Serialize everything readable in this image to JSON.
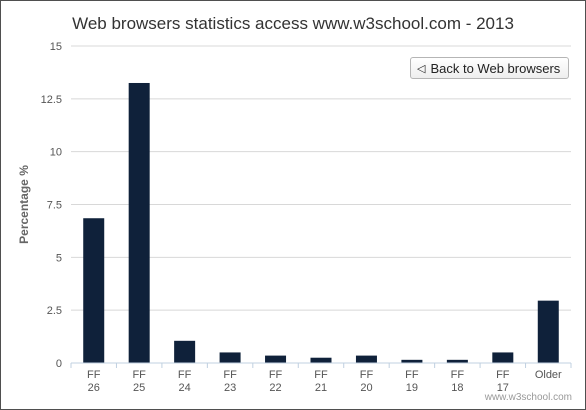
{
  "chart_data": {
    "type": "bar",
    "title": "Web browsers statistics access www.w3school.com - 2013",
    "ylabel": "Percentage %",
    "xlabel": "",
    "ylim": [
      0,
      15
    ],
    "yticks": [
      "0",
      "2.5",
      "5",
      "7.5",
      "10",
      "12.5",
      "15"
    ],
    "categories": [
      {
        "line1": "FF",
        "line2": "26"
      },
      {
        "line1": "FF",
        "line2": "25"
      },
      {
        "line1": "FF",
        "line2": "24"
      },
      {
        "line1": "FF",
        "line2": "23"
      },
      {
        "line1": "FF",
        "line2": "22"
      },
      {
        "line1": "FF",
        "line2": "21"
      },
      {
        "line1": "FF",
        "line2": "20"
      },
      {
        "line1": "FF",
        "line2": "19"
      },
      {
        "line1": "FF",
        "line2": "18"
      },
      {
        "line1": "FF",
        "line2": "17"
      },
      {
        "line1": "Older",
        "line2": ""
      }
    ],
    "values": [
      6.85,
      13.25,
      1.05,
      0.5,
      0.35,
      0.25,
      0.35,
      0.15,
      0.15,
      0.5,
      2.95
    ],
    "bar_color": "#0f213a",
    "grid": true
  },
  "back_button": {
    "label": "Back to Web browsers",
    "icon": "back-arrow-icon"
  },
  "credit": "www.w3school.com"
}
